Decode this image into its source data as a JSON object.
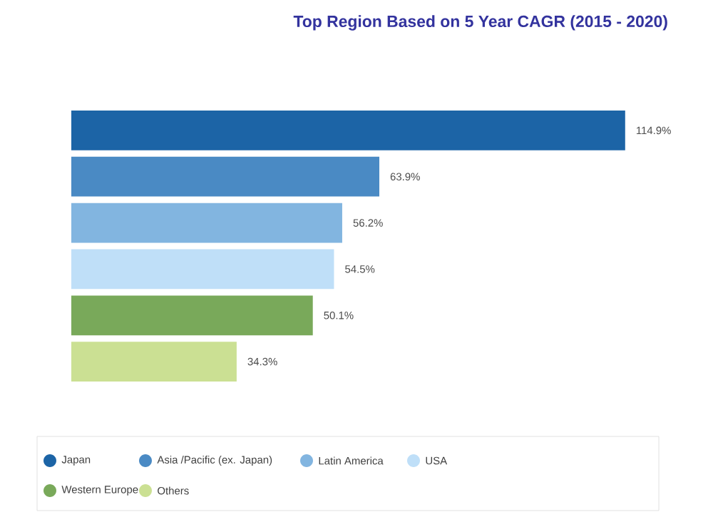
{
  "chart_data": {
    "type": "bar",
    "orientation": "horizontal",
    "title": "Top Region Based on 5 Year CAGR (2015 - 2020)",
    "categories": [
      null
    ],
    "series": [
      {
        "name": "Japan",
        "color": "#1c64a6",
        "values": [
          114.9
        ],
        "value_labels": [
          "114.9%"
        ]
      },
      {
        "name": "Asia /Pacific (ex. Japan)",
        "color": "#4a8ac4",
        "values": [
          63.9
        ],
        "value_labels": [
          "63.9%"
        ]
      },
      {
        "name": "Latin America",
        "color": "#82b5e0",
        "values": [
          56.2
        ],
        "value_labels": [
          "56.2%"
        ]
      },
      {
        "name": "USA",
        "color": "#bfdff8",
        "values": [
          54.5
        ],
        "value_labels": [
          "54.5%"
        ]
      },
      {
        "name": "Western Europe",
        "color": "#79a95a",
        "values": [
          50.1
        ],
        "value_labels": [
          "50.1%"
        ]
      },
      {
        "name": "Others",
        "color": "#cbe093",
        "values": [
          34.3
        ],
        "value_labels": [
          "34.3%"
        ]
      }
    ],
    "legend": "bottom"
  }
}
